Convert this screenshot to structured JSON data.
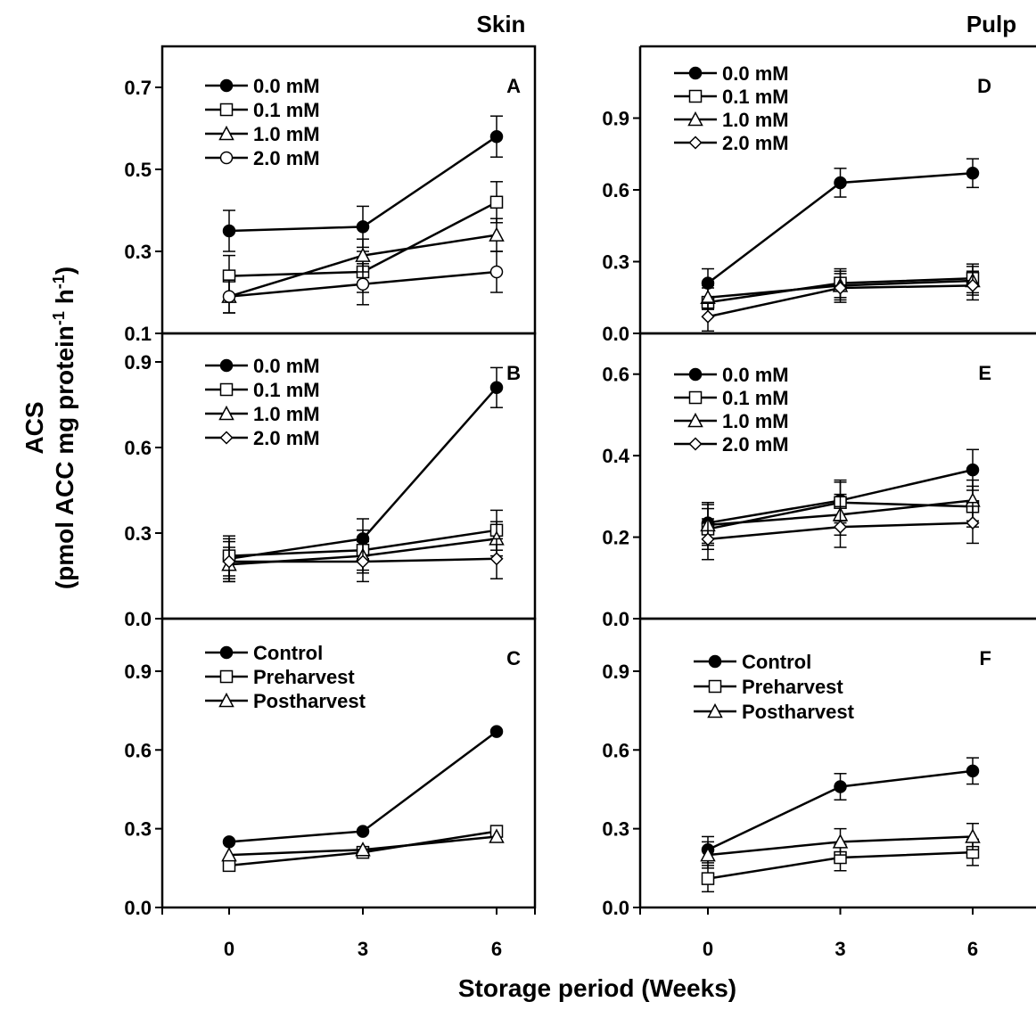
{
  "chart_data": {
    "type": "line",
    "y_title_line1": "ACS",
    "y_title_line2_pre": "(pmol ACC mg protein",
    "y_title_sup1": "-1",
    "y_title_mid": " h",
    "y_title_sup2": "-1",
    "y_title_end": ")",
    "xlabel": "Storage period (Weeks)",
    "x_ticks": [
      0,
      3,
      6
    ],
    "x_tick_labels": [
      "0",
      "3",
      "6"
    ],
    "columns": [
      "Skin",
      "Pulp"
    ],
    "panels": [
      {
        "id": "A",
        "column": 0,
        "row": 0,
        "ylim": [
          0.1,
          0.8
        ],
        "y_ticks": [
          0.1,
          0.3,
          0.5,
          0.7
        ],
        "y_tick_labels": [
          "0.1",
          "0.3",
          "0.5",
          "0.7"
        ],
        "series": [
          {
            "name": "0.0 mM",
            "marker": "filled-circle",
            "x": [
              0,
              3,
              6
            ],
            "y": [
              0.35,
              0.36,
              0.58
            ],
            "err": [
              0.05,
              0.05,
              0.05
            ]
          },
          {
            "name": "0.1 mM",
            "marker": "open-square",
            "x": [
              0,
              3,
              6
            ],
            "y": [
              0.24,
              0.25,
              0.42
            ],
            "err": [
              0.05,
              0.05,
              0.05
            ]
          },
          {
            "name": "1.0 mM",
            "marker": "open-triangle",
            "x": [
              0,
              3,
              6
            ],
            "y": [
              0.19,
              0.29,
              0.34
            ],
            "err": [
              0.04,
              0.04,
              0.04
            ]
          },
          {
            "name": "2.0 mM",
            "marker": "open-circle",
            "x": [
              0,
              3,
              6
            ],
            "y": [
              0.19,
              0.22,
              0.25
            ],
            "err": [
              0.04,
              0.05,
              0.05
            ]
          }
        ]
      },
      {
        "id": "B",
        "column": 0,
        "row": 1,
        "ylim": [
          0.0,
          1.0
        ],
        "y_ticks": [
          0.0,
          0.3,
          0.6,
          0.9
        ],
        "y_tick_labels": [
          "0.0",
          "0.3",
          "0.6",
          "0.9"
        ],
        "series": [
          {
            "name": "0.0 mM",
            "marker": "filled-circle",
            "x": [
              0,
              3,
              6
            ],
            "y": [
              0.21,
              0.28,
              0.81
            ],
            "err": [
              0.07,
              0.07,
              0.07
            ]
          },
          {
            "name": "0.1 mM",
            "marker": "open-square",
            "x": [
              0,
              3,
              6
            ],
            "y": [
              0.22,
              0.24,
              0.31
            ],
            "err": [
              0.07,
              0.07,
              0.07
            ]
          },
          {
            "name": "1.0 mM",
            "marker": "open-triangle",
            "x": [
              0,
              3,
              6
            ],
            "y": [
              0.19,
              0.22,
              0.28
            ],
            "err": [
              0.06,
              0.06,
              0.06
            ]
          },
          {
            "name": "2.0 mM",
            "marker": "open-diamond",
            "x": [
              0,
              3,
              6
            ],
            "y": [
              0.2,
              0.2,
              0.21
            ],
            "err": [
              0.07,
              0.07,
              0.07
            ]
          }
        ]
      },
      {
        "id": "C",
        "column": 0,
        "row": 2,
        "ylim": [
          0.0,
          1.1
        ],
        "y_ticks": [
          0.0,
          0.3,
          0.6,
          0.9
        ],
        "y_tick_labels": [
          "0.0",
          "0.3",
          "0.6",
          "0.9"
        ],
        "series": [
          {
            "name": "Control",
            "marker": "filled-circle",
            "x": [
              0,
              3,
              6
            ],
            "y": [
              0.25,
              0.29,
              0.67
            ],
            "err": [
              0,
              0,
              0
            ]
          },
          {
            "name": "Preharvest",
            "marker": "open-square",
            "x": [
              0,
              3,
              6
            ],
            "y": [
              0.16,
              0.21,
              0.29
            ],
            "err": [
              0,
              0,
              0
            ]
          },
          {
            "name": "Postharvest",
            "marker": "open-triangle",
            "x": [
              0,
              3,
              6
            ],
            "y": [
              0.2,
              0.22,
              0.27
            ],
            "err": [
              0,
              0,
              0
            ]
          }
        ]
      },
      {
        "id": "D",
        "column": 1,
        "row": 0,
        "ylim": [
          0.0,
          1.2
        ],
        "y_ticks": [
          0.0,
          0.3,
          0.6,
          0.9
        ],
        "y_tick_labels": [
          "0.0",
          "0.3",
          "0.6",
          "0.9"
        ],
        "series": [
          {
            "name": "0.0 mM",
            "marker": "filled-circle",
            "x": [
              0,
              3,
              6
            ],
            "y": [
              0.21,
              0.63,
              0.67
            ],
            "err": [
              0.06,
              0.06,
              0.06
            ]
          },
          {
            "name": "0.1 mM",
            "marker": "open-square",
            "x": [
              0,
              3,
              6
            ],
            "y": [
              0.13,
              0.21,
              0.23
            ],
            "err": [
              0.06,
              0.06,
              0.06
            ]
          },
          {
            "name": "1.0 mM",
            "marker": "open-triangle",
            "x": [
              0,
              3,
              6
            ],
            "y": [
              0.15,
              0.2,
              0.22
            ],
            "err": [
              0.05,
              0.06,
              0.06
            ]
          },
          {
            "name": "2.0 mM",
            "marker": "open-diamond",
            "x": [
              0,
              3,
              6
            ],
            "y": [
              0.07,
              0.19,
              0.2
            ],
            "err": [
              0.06,
              0.06,
              0.06
            ]
          }
        ]
      },
      {
        "id": "E",
        "column": 1,
        "row": 1,
        "ylim": [
          0.0,
          0.7
        ],
        "y_ticks": [
          0.0,
          0.2,
          0.4,
          0.6
        ],
        "y_tick_labels": [
          "0.0",
          "0.2",
          "0.4",
          "0.6"
        ],
        "series": [
          {
            "name": "0.0 mM",
            "marker": "filled-circle",
            "x": [
              0,
              3,
              6
            ],
            "y": [
              0.235,
              0.29,
              0.365
            ],
            "err": [
              0.05,
              0.05,
              0.05
            ]
          },
          {
            "name": "0.1 mM",
            "marker": "open-square",
            "x": [
              0,
              3,
              6
            ],
            "y": [
              0.22,
              0.285,
              0.275
            ],
            "err": [
              0.05,
              0.05,
              0.05
            ]
          },
          {
            "name": "1.0 mM",
            "marker": "open-triangle",
            "x": [
              0,
              3,
              6
            ],
            "y": [
              0.23,
              0.255,
              0.29
            ],
            "err": [
              0.05,
              0.05,
              0.05
            ]
          },
          {
            "name": "2.0 mM",
            "marker": "open-diamond",
            "x": [
              0,
              3,
              6
            ],
            "y": [
              0.195,
              0.225,
              0.235
            ],
            "err": [
              0.05,
              0.05,
              0.05
            ]
          }
        ]
      },
      {
        "id": "F",
        "column": 1,
        "row": 2,
        "ylim": [
          0.0,
          1.1
        ],
        "y_ticks": [
          0.0,
          0.3,
          0.6,
          0.9
        ],
        "y_tick_labels": [
          "0.0",
          "0.3",
          "0.6",
          "0.9"
        ],
        "series": [
          {
            "name": "Control",
            "marker": "filled-circle",
            "x": [
              0,
              3,
              6
            ],
            "y": [
              0.22,
              0.46,
              0.52
            ],
            "err": [
              0.05,
              0.05,
              0.05
            ]
          },
          {
            "name": "Preharvest",
            "marker": "open-square",
            "x": [
              0,
              3,
              6
            ],
            "y": [
              0.11,
              0.19,
              0.21
            ],
            "err": [
              0.05,
              0.05,
              0.05
            ]
          },
          {
            "name": "Postharvest",
            "marker": "open-triangle",
            "x": [
              0,
              3,
              6
            ],
            "y": [
              0.2,
              0.25,
              0.27
            ],
            "err": [
              0.05,
              0.05,
              0.05
            ]
          }
        ]
      }
    ]
  }
}
